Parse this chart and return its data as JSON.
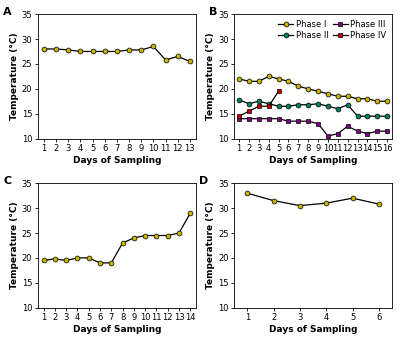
{
  "A": {
    "x": [
      1,
      2,
      3,
      4,
      5,
      6,
      7,
      8,
      9,
      10,
      11,
      12,
      13
    ],
    "y": [
      28.0,
      28.0,
      27.8,
      27.5,
      27.5,
      27.5,
      27.5,
      27.8,
      27.8,
      28.5,
      25.8,
      26.5,
      25.5
    ],
    "color": "#c8b400",
    "marker": "o",
    "xlim": [
      0.5,
      13.5
    ],
    "ylim": [
      10,
      35
    ],
    "yticks": [
      10,
      15,
      20,
      25,
      30,
      35
    ],
    "xticks": [
      1,
      2,
      3,
      4,
      5,
      6,
      7,
      8,
      9,
      10,
      11,
      12,
      13
    ]
  },
  "B": {
    "phase_I": {
      "x": [
        1,
        2,
        3,
        4,
        5,
        6,
        7,
        8,
        9,
        10,
        11,
        12,
        13,
        14,
        15,
        16
      ],
      "y": [
        22.0,
        21.5,
        21.5,
        22.5,
        22.0,
        21.5,
        20.5,
        20.0,
        19.5,
        19.0,
        18.5,
        18.5,
        18.0,
        18.0,
        17.5,
        17.5
      ],
      "color": "#c8b400",
      "marker": "o",
      "label": "Phase I"
    },
    "phase_II": {
      "x": [
        1,
        2,
        3,
        4,
        5,
        6,
        7,
        8,
        9,
        10,
        11,
        12,
        13,
        14,
        15,
        16
      ],
      "y": [
        17.8,
        17.0,
        17.5,
        17.0,
        16.5,
        16.5,
        16.8,
        16.8,
        17.0,
        16.5,
        16.0,
        16.8,
        14.5,
        14.5,
        14.5,
        14.5
      ],
      "color": "#008060",
      "marker": "o",
      "label": "Phase II"
    },
    "phase_III": {
      "x": [
        1,
        2,
        3,
        4,
        5,
        6,
        7,
        8,
        9,
        10,
        11,
        12,
        13,
        14,
        15,
        16
      ],
      "y": [
        14.0,
        14.0,
        14.0,
        14.0,
        14.0,
        13.5,
        13.5,
        13.5,
        13.0,
        10.5,
        11.0,
        12.5,
        11.5,
        11.0,
        11.5,
        11.5
      ],
      "color": "#800080",
      "marker": "s",
      "label": "Phase III"
    },
    "phase_IV": {
      "x": [
        1,
        2,
        3,
        4,
        5
      ],
      "y": [
        14.5,
        15.5,
        16.5,
        16.5,
        19.5
      ],
      "color": "#cc0000",
      "marker": "s",
      "label": "Phase IV"
    },
    "xlim": [
      0.5,
      16.5
    ],
    "ylim": [
      10,
      35
    ],
    "yticks": [
      10,
      15,
      20,
      25,
      30,
      35
    ],
    "xticks": [
      1,
      2,
      3,
      4,
      5,
      6,
      7,
      8,
      9,
      10,
      11,
      12,
      13,
      14,
      15,
      16
    ]
  },
  "C": {
    "x": [
      1,
      2,
      3,
      4,
      5,
      6,
      7,
      8,
      9,
      10,
      11,
      12,
      13,
      14
    ],
    "y": [
      19.5,
      19.8,
      19.5,
      20.0,
      20.0,
      19.0,
      19.0,
      23.0,
      24.0,
      24.5,
      24.5,
      24.5,
      25.0,
      29.0
    ],
    "color": "#c8b400",
    "marker": "o",
    "xlim": [
      0.5,
      14.5
    ],
    "ylim": [
      10,
      35
    ],
    "yticks": [
      10,
      15,
      20,
      25,
      30,
      35
    ],
    "xticks": [
      1,
      2,
      3,
      4,
      5,
      6,
      7,
      8,
      9,
      10,
      11,
      12,
      13,
      14
    ]
  },
  "D": {
    "x": [
      1,
      2,
      3,
      4,
      5,
      6
    ],
    "y": [
      33.0,
      31.5,
      30.5,
      31.0,
      32.0,
      30.8
    ],
    "color": "#c8b400",
    "marker": "o",
    "xlim": [
      0.5,
      6.5
    ],
    "ylim": [
      10,
      35
    ],
    "yticks": [
      10,
      15,
      20,
      25,
      30,
      35
    ],
    "xticks": [
      1,
      2,
      3,
      4,
      5,
      6
    ]
  },
  "ylabel": "Temperature (°C)",
  "xlabel": "Days of Sampling",
  "line_color": "black",
  "line_width": 0.9,
  "marker_size": 3.5,
  "marker_edge_width": 0.5,
  "tick_fontsize": 6,
  "label_fontsize": 6.5,
  "legend_fontsize": 6,
  "panel_label_fontsize": 8,
  "spine_lw": 0.6
}
